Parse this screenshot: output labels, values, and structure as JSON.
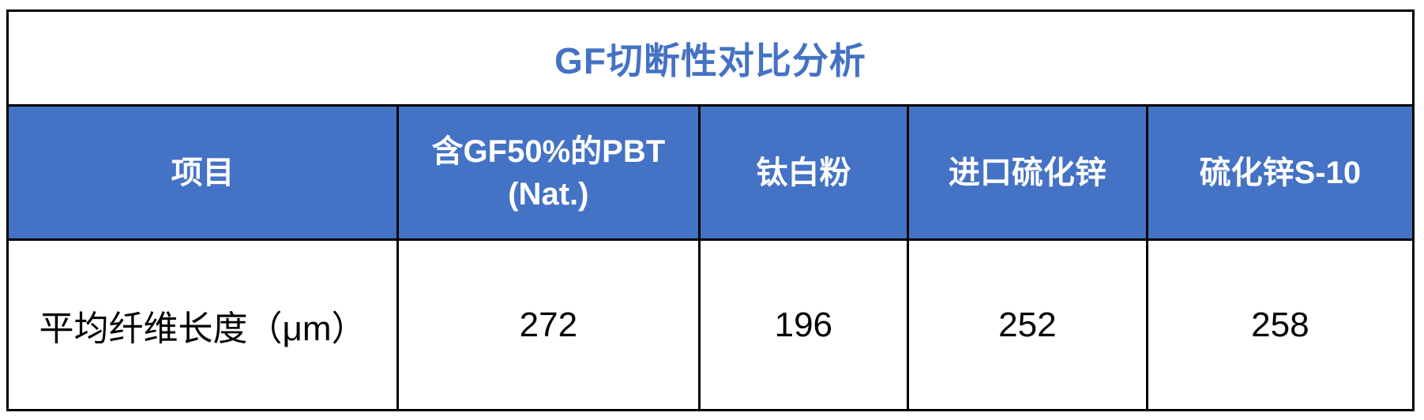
{
  "title": "GF切断性对比分析",
  "colors": {
    "header_bg": "#4472C4",
    "title_text": "#4472C4",
    "border": "#000000",
    "data_text": "#000000",
    "header_text": "#ffffff"
  },
  "table": {
    "columns": [
      "项目",
      "含GF50%的PBT\n(Nat.)",
      "钛白粉",
      "进口硫化锌",
      "硫化锌S-10"
    ],
    "rows": [
      {
        "label": "平均纤维长度（μm）",
        "values": [
          "272",
          "196",
          "252",
          "258"
        ]
      }
    ]
  },
  "chart_data": {
    "type": "table",
    "title": "GF切断性对比分析",
    "categories": [
      "含GF50%的PBT (Nat.)",
      "钛白粉",
      "进口硫化锌",
      "硫化锌S-10"
    ],
    "series": [
      {
        "name": "平均纤维长度（μm）",
        "values": [
          272,
          196,
          252,
          258
        ]
      }
    ]
  }
}
